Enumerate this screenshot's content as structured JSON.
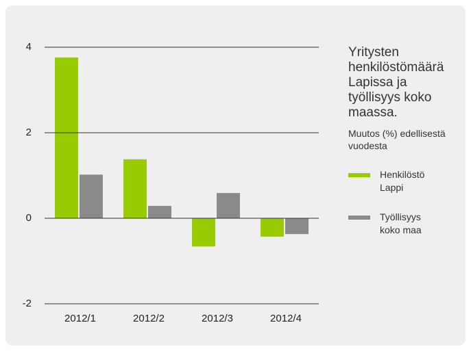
{
  "chart_data": {
    "type": "bar",
    "title": "Yritysten henkilöstömäärä Lapissa ja työllisyys koko maassa.",
    "subtitle": "Muutos (%) edellisestä vuodesta",
    "categories": [
      "2012/1",
      "2012/2",
      "2012/3",
      "2012/4"
    ],
    "series": [
      {
        "name": "Henkilöstö Lappi",
        "color": "#99cc00",
        "values": [
          3.76,
          1.38,
          -0.66,
          -0.43
        ]
      },
      {
        "name": "Työllisyys koko maa",
        "color": "#8a8a8a",
        "values": [
          1.02,
          0.29,
          0.59,
          -0.37
        ]
      }
    ],
    "ylim": [
      -2,
      4
    ],
    "yticks": [
      -2,
      0,
      2,
      4
    ],
    "grid": true,
    "legend": "right"
  }
}
